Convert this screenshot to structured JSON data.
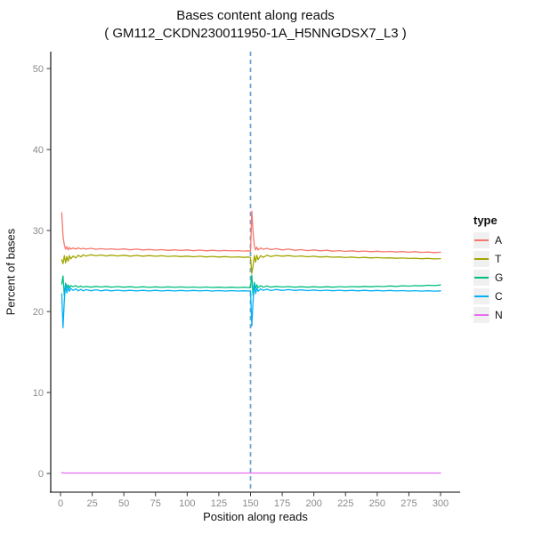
{
  "chart_data": {
    "type": "line",
    "title": "Bases content along reads",
    "subtitle": "( GM112_CKDN230011950-1A_H5NNGDSX7_L3 )",
    "xlabel": "Position along reads",
    "ylabel": "Percent of bases",
    "xlim": [
      0,
      300
    ],
    "ylim": [
      0,
      50
    ],
    "xticks": [
      0,
      25,
      50,
      75,
      100,
      125,
      150,
      175,
      200,
      225,
      250,
      275,
      300
    ],
    "yticks": [
      0,
      10,
      20,
      30,
      40,
      50
    ],
    "grid": "off",
    "legend_position": "right",
    "legend_title": "type",
    "vline": {
      "x": 150,
      "style": "dashed",
      "color": "#6FA3D3"
    },
    "x": [
      1,
      2,
      3,
      4,
      5,
      6,
      7,
      8,
      10,
      12,
      14,
      16,
      18,
      20,
      24,
      28,
      32,
      36,
      40,
      45,
      50,
      55,
      60,
      65,
      70,
      75,
      80,
      85,
      90,
      95,
      100,
      105,
      110,
      115,
      120,
      125,
      130,
      135,
      140,
      145,
      148,
      150,
      151,
      152,
      153,
      154,
      155,
      156,
      158,
      160,
      163,
      166,
      170,
      175,
      180,
      185,
      190,
      195,
      200,
      205,
      210,
      215,
      220,
      225,
      230,
      235,
      240,
      245,
      250,
      255,
      260,
      265,
      270,
      275,
      280,
      285,
      290,
      295,
      300
    ],
    "series": [
      {
        "name": "A",
        "color": "#F8766D",
        "values": [
          32.2,
          29.3,
          28.2,
          27.7,
          28.0,
          27.6,
          27.9,
          27.7,
          27.85,
          27.7,
          27.85,
          27.72,
          27.8,
          27.7,
          27.8,
          27.68,
          27.76,
          27.68,
          27.74,
          27.65,
          27.72,
          27.62,
          27.7,
          27.6,
          27.66,
          27.58,
          27.64,
          27.55,
          27.62,
          27.54,
          27.6,
          27.52,
          27.58,
          27.5,
          27.56,
          27.48,
          27.54,
          27.48,
          27.52,
          27.46,
          27.5,
          27.45,
          32.4,
          29.8,
          28.1,
          27.6,
          27.95,
          27.6,
          27.85,
          27.68,
          27.8,
          27.64,
          27.76,
          27.6,
          27.7,
          27.56,
          27.64,
          27.52,
          27.6,
          27.5,
          27.56,
          27.45,
          27.52,
          27.42,
          27.5,
          27.4,
          27.46,
          27.38,
          27.44,
          27.36,
          27.42,
          27.34,
          27.4,
          27.32,
          27.38,
          27.3,
          27.34,
          27.28,
          27.32
        ]
      },
      {
        "name": "T",
        "color": "#A3A500",
        "values": [
          26.4,
          25.9,
          26.9,
          26.0,
          26.8,
          26.2,
          26.9,
          26.5,
          26.85,
          26.6,
          26.95,
          26.75,
          27.0,
          26.85,
          27.0,
          26.88,
          26.98,
          26.86,
          26.96,
          26.86,
          26.94,
          26.84,
          26.92,
          26.84,
          26.9,
          26.82,
          26.88,
          26.8,
          26.86,
          26.78,
          26.84,
          26.76,
          26.82,
          26.74,
          26.8,
          26.72,
          26.78,
          26.7,
          26.75,
          26.68,
          26.72,
          26.65,
          24.7,
          25.6,
          26.9,
          26.1,
          26.95,
          26.4,
          26.9,
          26.68,
          26.95,
          26.78,
          26.92,
          26.84,
          26.9,
          26.8,
          26.86,
          26.76,
          26.82,
          26.72,
          26.78,
          26.7,
          26.74,
          26.66,
          26.72,
          26.64,
          26.68,
          26.62,
          26.66,
          26.6,
          26.63,
          26.57,
          26.6,
          26.55,
          26.58,
          26.52,
          26.56,
          26.5,
          26.53
        ]
      },
      {
        "name": "G",
        "color": "#00BF7D",
        "values": [
          23.4,
          24.4,
          21.9,
          23.5,
          23.0,
          23.3,
          22.9,
          23.2,
          23.05,
          23.2,
          23.0,
          23.14,
          23.0,
          23.1,
          23.0,
          23.1,
          23.02,
          23.1,
          23.0,
          23.08,
          23.0,
          23.06,
          22.98,
          23.05,
          22.98,
          23.04,
          22.98,
          23.04,
          22.98,
          23.03,
          22.98,
          23.02,
          22.97,
          23.02,
          22.97,
          23.0,
          22.96,
          23.0,
          22.96,
          23.0,
          22.97,
          23.0,
          24.5,
          22.0,
          23.6,
          22.9,
          23.3,
          22.95,
          23.2,
          23.0,
          23.15,
          23.0,
          23.1,
          23.02,
          23.08,
          23.0,
          23.06,
          23.0,
          23.05,
          23.0,
          23.06,
          23.0,
          23.07,
          23.02,
          23.08,
          23.04,
          23.1,
          23.06,
          23.12,
          23.08,
          23.15,
          23.1,
          23.18,
          23.13,
          23.2,
          23.16,
          23.24,
          23.2,
          23.28
        ]
      },
      {
        "name": "C",
        "color": "#00B0F6",
        "values": [
          22.2,
          18.0,
          21.4,
          23.4,
          22.3,
          23.0,
          22.5,
          22.85,
          22.6,
          22.8,
          22.55,
          22.74,
          22.55,
          22.7,
          22.56,
          22.68,
          22.55,
          22.66,
          22.55,
          22.64,
          22.55,
          22.62,
          22.54,
          22.62,
          22.54,
          22.61,
          22.54,
          22.6,
          22.54,
          22.6,
          22.54,
          22.6,
          22.54,
          22.59,
          22.53,
          22.58,
          22.53,
          22.58,
          22.53,
          22.56,
          22.53,
          22.55,
          18.2,
          21.2,
          23.5,
          22.2,
          22.9,
          22.5,
          22.8,
          22.6,
          22.76,
          22.58,
          22.72,
          22.6,
          22.7,
          22.6,
          22.67,
          22.58,
          22.66,
          22.57,
          22.64,
          22.56,
          22.63,
          22.56,
          22.62,
          22.55,
          22.61,
          22.55,
          22.6,
          22.54,
          22.6,
          22.54,
          22.58,
          22.53,
          22.57,
          22.52,
          22.56,
          22.52,
          22.55
        ]
      },
      {
        "name": "N",
        "color": "#E76BF3",
        "values": [
          0.12,
          0.06,
          0.05,
          0.05,
          0.05,
          0.05,
          0.05,
          0.05,
          0.05,
          0.05,
          0.05,
          0.05,
          0.05,
          0.05,
          0.05,
          0.05,
          0.05,
          0.05,
          0.05,
          0.05,
          0.05,
          0.05,
          0.05,
          0.05,
          0.05,
          0.05,
          0.05,
          0.05,
          0.05,
          0.05,
          0.05,
          0.05,
          0.05,
          0.05,
          0.05,
          0.05,
          0.05,
          0.05,
          0.05,
          0.05,
          0.05,
          0.05,
          0.05,
          0.05,
          0.05,
          0.05,
          0.05,
          0.05,
          0.05,
          0.05,
          0.05,
          0.05,
          0.05,
          0.05,
          0.05,
          0.05,
          0.05,
          0.05,
          0.05,
          0.05,
          0.05,
          0.05,
          0.05,
          0.05,
          0.05,
          0.05,
          0.05,
          0.05,
          0.05,
          0.05,
          0.05,
          0.05,
          0.05,
          0.05,
          0.05,
          0.05,
          0.05,
          0.05,
          0.05
        ]
      }
    ]
  },
  "theme": {
    "axis_line_color": "#000000",
    "tick_color": "#333333",
    "tick_label_color": "#8a8a8a",
    "legend_key_fill": "#f0f0f0"
  }
}
